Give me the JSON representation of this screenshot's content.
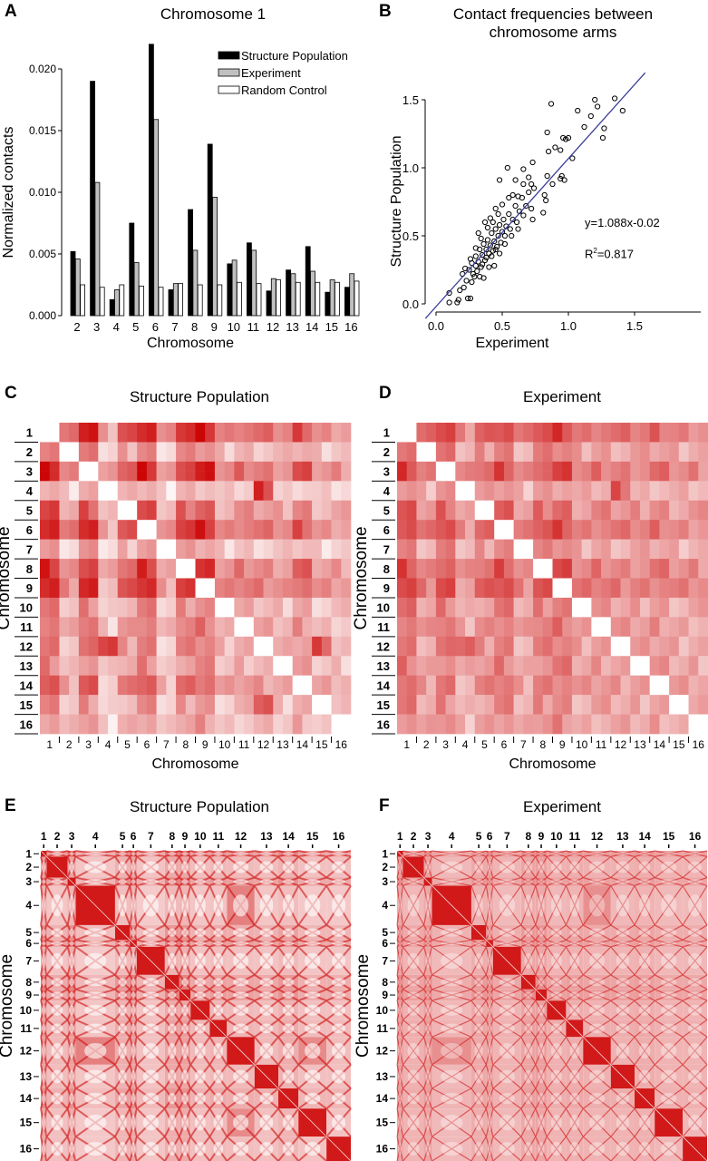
{
  "panels": {
    "A": {
      "letter": "A",
      "title": "Chromosome 1"
    },
    "B": {
      "letter": "B",
      "title_line1": "Contact frequencies between",
      "title_line2": "chromosome arms",
      "equation": "y=1.088x-0.02",
      "r2_prefix": "R",
      "r2_sup": "2",
      "r2_value": "=0.817"
    },
    "C": {
      "letter": "C",
      "title": "Structure Population"
    },
    "D": {
      "letter": "D",
      "title": "Experiment"
    },
    "E": {
      "letter": "E",
      "title": "Structure Population"
    },
    "F": {
      "letter": "F",
      "title": "Experiment"
    }
  },
  "colors": {
    "structure": "#000000",
    "experiment": "#c0c0c0",
    "random": "#ffffff",
    "fit_line": "#3b3f9a",
    "heat_high": "#cc0000",
    "heat_low": "#ffffff"
  },
  "chart_data": [
    {
      "panel": "A",
      "type": "bar",
      "title": "Chromosome 1",
      "xlabel": "Chromosome",
      "ylabel": "Normalized contacts",
      "ylim": [
        0,
        0.02
      ],
      "yticks": [
        "0.000",
        "0.005",
        "0.010",
        "0.015",
        "0.020"
      ],
      "categories": [
        "2",
        "3",
        "4",
        "5",
        "6",
        "7",
        "8",
        "9",
        "10",
        "11",
        "12",
        "13",
        "14",
        "15",
        "16"
      ],
      "legend_position": "top-right",
      "series": [
        {
          "name": "Structure Population",
          "values": [
            0.0052,
            0.019,
            0.0013,
            0.0075,
            0.022,
            0.0021,
            0.0086,
            0.0139,
            0.0042,
            0.0059,
            0.002,
            0.0037,
            0.0056,
            0.0019,
            0.0023
          ]
        },
        {
          "name": "Experiment",
          "values": [
            0.0046,
            0.0108,
            0.0021,
            0.0043,
            0.0159,
            0.0026,
            0.0053,
            0.0096,
            0.0045,
            0.0053,
            0.003,
            0.0034,
            0.0036,
            0.0029,
            0.0034
          ]
        },
        {
          "name": "Random Control",
          "values": [
            0.0025,
            0.0023,
            0.0025,
            0.0024,
            0.0023,
            0.0026,
            0.0025,
            0.0025,
            0.0027,
            0.0026,
            0.0029,
            0.0027,
            0.0027,
            0.0027,
            0.0028
          ]
        }
      ]
    },
    {
      "panel": "B",
      "type": "scatter",
      "title": "Contact frequencies between chromosome arms",
      "xlabel": "Experiment",
      "ylabel": "Structure Population",
      "xticks": [
        "0.0",
        "0.5",
        "1.0",
        "1.5"
      ],
      "yticks": [
        "0.0",
        "0.5",
        "1.0",
        "1.5"
      ],
      "fit": {
        "slope": 1.088,
        "intercept": -0.02,
        "r2": 0.817
      },
      "points": [
        [
          0.87,
          1.47
        ],
        [
          1.2,
          1.5
        ],
        [
          1.35,
          1.51
        ],
        [
          1.22,
          1.45
        ],
        [
          1.07,
          1.42
        ],
        [
          1.41,
          1.42
        ],
        [
          1.17,
          1.38
        ],
        [
          0.84,
          1.26
        ],
        [
          1.12,
          1.3
        ],
        [
          1.27,
          1.29
        ],
        [
          1.26,
          1.22
        ],
        [
          0.96,
          1.22
        ],
        [
          0.98,
          1.21
        ],
        [
          1.0,
          1.22
        ],
        [
          0.9,
          1.15
        ],
        [
          0.94,
          1.13
        ],
        [
          0.85,
          1.12
        ],
        [
          1.03,
          1.07
        ],
        [
          0.54,
          1.0
        ],
        [
          0.73,
          1.04
        ],
        [
          0.66,
          0.99
        ],
        [
          0.48,
          0.91
        ],
        [
          0.6,
          0.91
        ],
        [
          0.84,
          0.94
        ],
        [
          0.95,
          0.94
        ],
        [
          0.94,
          0.92
        ],
        [
          0.97,
          0.91
        ],
        [
          0.88,
          0.88
        ],
        [
          0.82,
          0.8
        ],
        [
          0.83,
          0.76
        ],
        [
          0.81,
          0.67
        ],
        [
          0.73,
          0.62
        ],
        [
          0.1,
          0.01
        ],
        [
          0.16,
          0.01
        ],
        [
          0.17,
          0.03
        ],
        [
          0.24,
          0.04
        ],
        [
          0.26,
          0.04
        ],
        [
          0.1,
          0.08
        ],
        [
          0.18,
          0.1
        ],
        [
          0.2,
          0.22
        ],
        [
          0.22,
          0.26
        ],
        [
          0.25,
          0.25
        ],
        [
          0.27,
          0.3
        ],
        [
          0.28,
          0.22
        ],
        [
          0.3,
          0.28
        ],
        [
          0.3,
          0.35
        ],
        [
          0.32,
          0.31
        ],
        [
          0.33,
          0.4
        ],
        [
          0.34,
          0.27
        ],
        [
          0.35,
          0.36
        ],
        [
          0.36,
          0.44
        ],
        [
          0.37,
          0.32
        ],
        [
          0.38,
          0.4
        ],
        [
          0.39,
          0.47
        ],
        [
          0.4,
          0.37
        ],
        [
          0.41,
          0.43
        ],
        [
          0.42,
          0.52
        ],
        [
          0.43,
          0.39
        ],
        [
          0.44,
          0.46
        ],
        [
          0.45,
          0.55
        ],
        [
          0.46,
          0.42
        ],
        [
          0.47,
          0.5
        ],
        [
          0.48,
          0.58
        ],
        [
          0.49,
          0.45
        ],
        [
          0.5,
          0.53
        ],
        [
          0.51,
          0.62
        ],
        [
          0.52,
          0.5
        ],
        [
          0.53,
          0.57
        ],
        [
          0.55,
          0.66
        ],
        [
          0.56,
          0.55
        ],
        [
          0.58,
          0.62
        ],
        [
          0.6,
          0.72
        ],
        [
          0.61,
          0.6
        ],
        [
          0.63,
          0.68
        ],
        [
          0.65,
          0.78
        ],
        [
          0.66,
          0.65
        ],
        [
          0.68,
          0.72
        ],
        [
          0.7,
          0.82
        ],
        [
          0.72,
          0.7
        ],
        [
          0.74,
          0.85
        ],
        [
          0.29,
          0.2
        ],
        [
          0.31,
          0.24
        ],
        [
          0.35,
          0.29
        ],
        [
          0.38,
          0.34
        ],
        [
          0.42,
          0.35
        ],
        [
          0.45,
          0.4
        ],
        [
          0.26,
          0.33
        ],
        [
          0.3,
          0.41
        ],
        [
          0.34,
          0.48
        ],
        [
          0.39,
          0.56
        ],
        [
          0.43,
          0.6
        ],
        [
          0.47,
          0.66
        ],
        [
          0.5,
          0.73
        ],
        [
          0.55,
          0.78
        ],
        [
          0.36,
          0.19
        ],
        [
          0.4,
          0.27
        ],
        [
          0.23,
          0.17
        ],
        [
          0.21,
          0.12
        ],
        [
          0.27,
          0.16
        ],
        [
          0.33,
          0.2
        ],
        [
          0.48,
          0.37
        ],
        [
          0.52,
          0.44
        ],
        [
          0.57,
          0.5
        ],
        [
          0.62,
          0.55
        ],
        [
          0.44,
          0.28
        ],
        [
          0.32,
          0.52
        ],
        [
          0.37,
          0.6
        ],
        [
          0.41,
          0.63
        ],
        [
          0.45,
          0.7
        ],
        [
          0.58,
          0.8
        ],
        [
          0.62,
          0.79
        ],
        [
          0.66,
          0.88
        ],
        [
          0.7,
          0.93
        ],
        [
          0.72,
          0.88
        ]
      ]
    },
    {
      "panel": "C",
      "type": "heatmap",
      "title": "Structure Population",
      "xlabel": "Chromosome",
      "ylabel": "Chromosome",
      "labels": [
        "1",
        "2",
        "3",
        "4",
        "5",
        "6",
        "7",
        "8",
        "9",
        "10",
        "11",
        "12",
        "13",
        "14",
        "15",
        "16"
      ],
      "values": [
        [
          0,
          0.5,
          0.95,
          0.35,
          0.7,
          0.95,
          0.4,
          0.85,
          0.9,
          0.5,
          0.6,
          0.55,
          0.5,
          0.7,
          0.45,
          0.45
        ],
        [
          0.5,
          0,
          0.48,
          0.18,
          0.35,
          0.48,
          0.2,
          0.43,
          0.45,
          0.25,
          0.3,
          0.28,
          0.25,
          0.35,
          0.23,
          0.23
        ],
        [
          0.95,
          0.48,
          0,
          0.33,
          0.67,
          0.9,
          0.38,
          0.81,
          0.86,
          0.48,
          0.57,
          0.52,
          0.48,
          0.67,
          0.43,
          0.43
        ],
        [
          0.35,
          0.18,
          0.33,
          0,
          0.25,
          0.33,
          0.14,
          0.3,
          0.32,
          0.18,
          0.21,
          0.8,
          0.18,
          0.25,
          0.16,
          0.16
        ],
        [
          0.7,
          0.35,
          0.67,
          0.25,
          0,
          0.67,
          0.28,
          0.6,
          0.63,
          0.35,
          0.42,
          0.39,
          0.35,
          0.49,
          0.32,
          0.32
        ],
        [
          0.95,
          0.48,
          0.9,
          0.33,
          0.67,
          0,
          0.38,
          0.81,
          0.86,
          0.48,
          0.57,
          0.52,
          0.48,
          0.67,
          0.43,
          0.43
        ],
        [
          0.4,
          0.2,
          0.38,
          0.14,
          0.28,
          0.38,
          0,
          0.34,
          0.36,
          0.2,
          0.24,
          0.22,
          0.2,
          0.28,
          0.18,
          0.18
        ],
        [
          0.85,
          0.43,
          0.81,
          0.3,
          0.6,
          0.81,
          0.34,
          0,
          0.77,
          0.43,
          0.51,
          0.47,
          0.43,
          0.6,
          0.38,
          0.38
        ],
        [
          0.9,
          0.45,
          0.86,
          0.32,
          0.63,
          0.86,
          0.36,
          0.77,
          0,
          0.45,
          0.54,
          0.5,
          0.45,
          0.63,
          0.41,
          0.41
        ],
        [
          0.5,
          0.25,
          0.48,
          0.18,
          0.35,
          0.48,
          0.2,
          0.43,
          0.45,
          0,
          0.3,
          0.28,
          0.25,
          0.35,
          0.23,
          0.23
        ],
        [
          0.6,
          0.3,
          0.57,
          0.21,
          0.42,
          0.57,
          0.24,
          0.51,
          0.54,
          0.3,
          0,
          0.33,
          0.3,
          0.42,
          0.27,
          0.27
        ],
        [
          0.55,
          0.28,
          0.52,
          0.8,
          0.39,
          0.52,
          0.22,
          0.47,
          0.5,
          0.28,
          0.33,
          0,
          0.28,
          0.39,
          0.7,
          0.25
        ],
        [
          0.5,
          0.25,
          0.48,
          0.18,
          0.35,
          0.48,
          0.2,
          0.43,
          0.45,
          0.25,
          0.3,
          0.28,
          0,
          0.35,
          0.23,
          0.23
        ],
        [
          0.7,
          0.35,
          0.67,
          0.25,
          0.49,
          0.67,
          0.28,
          0.6,
          0.63,
          0.35,
          0.42,
          0.39,
          0.35,
          0,
          0.32,
          0.32
        ],
        [
          0.45,
          0.23,
          0.43,
          0.16,
          0.32,
          0.43,
          0.18,
          0.38,
          0.41,
          0.23,
          0.27,
          0.7,
          0.23,
          0.32,
          0,
          0.2
        ],
        [
          0.45,
          0.23,
          0.43,
          0.16,
          0.32,
          0.43,
          0.18,
          0.38,
          0.41,
          0.23,
          0.27,
          0.25,
          0.23,
          0.32,
          0.2,
          0
        ]
      ]
    },
    {
      "panel": "D",
      "type": "heatmap",
      "title": "Experiment",
      "xlabel": "Chromosome",
      "ylabel": "Chromosome",
      "labels": [
        "1",
        "2",
        "3",
        "4",
        "5",
        "6",
        "7",
        "8",
        "9",
        "10",
        "11",
        "12",
        "13",
        "14",
        "15",
        "16"
      ],
      "values": [
        [
          0,
          0.54,
          0.77,
          0.45,
          0.63,
          0.77,
          0.5,
          0.72,
          0.77,
          0.54,
          0.59,
          0.54,
          0.54,
          0.59,
          0.5,
          0.5
        ],
        [
          0.54,
          0,
          0.51,
          0.3,
          0.42,
          0.51,
          0.33,
          0.48,
          0.51,
          0.36,
          0.39,
          0.36,
          0.36,
          0.39,
          0.33,
          0.33
        ],
        [
          0.77,
          0.51,
          0,
          0.43,
          0.6,
          0.72,
          0.47,
          0.68,
          0.72,
          0.51,
          0.55,
          0.51,
          0.51,
          0.55,
          0.47,
          0.47
        ],
        [
          0.45,
          0.3,
          0.43,
          0,
          0.35,
          0.43,
          0.28,
          0.4,
          0.43,
          0.3,
          0.33,
          0.65,
          0.3,
          0.33,
          0.28,
          0.28
        ],
        [
          0.63,
          0.42,
          0.6,
          0.35,
          0,
          0.6,
          0.39,
          0.56,
          0.6,
          0.42,
          0.46,
          0.42,
          0.42,
          0.46,
          0.39,
          0.39
        ],
        [
          0.77,
          0.51,
          0.72,
          0.43,
          0.6,
          0,
          0.47,
          0.68,
          0.72,
          0.51,
          0.55,
          0.51,
          0.51,
          0.55,
          0.47,
          0.47
        ],
        [
          0.5,
          0.33,
          0.47,
          0.28,
          0.39,
          0.47,
          0,
          0.44,
          0.47,
          0.33,
          0.36,
          0.33,
          0.33,
          0.36,
          0.3,
          0.3
        ],
        [
          0.72,
          0.48,
          0.68,
          0.4,
          0.56,
          0.68,
          0.44,
          0,
          0.68,
          0.48,
          0.52,
          0.48,
          0.48,
          0.52,
          0.44,
          0.44
        ],
        [
          0.77,
          0.51,
          0.72,
          0.43,
          0.6,
          0.72,
          0.47,
          0.68,
          0,
          0.51,
          0.55,
          0.51,
          0.51,
          0.55,
          0.47,
          0.47
        ],
        [
          0.54,
          0.36,
          0.51,
          0.3,
          0.42,
          0.51,
          0.33,
          0.48,
          0.51,
          0,
          0.39,
          0.36,
          0.36,
          0.39,
          0.33,
          0.33
        ],
        [
          0.59,
          0.39,
          0.55,
          0.33,
          0.46,
          0.55,
          0.36,
          0.52,
          0.55,
          0.39,
          0,
          0.39,
          0.39,
          0.42,
          0.36,
          0.36
        ],
        [
          0.54,
          0.36,
          0.51,
          0.65,
          0.42,
          0.51,
          0.33,
          0.48,
          0.51,
          0.36,
          0.39,
          0,
          0.36,
          0.39,
          0.33,
          0.33
        ],
        [
          0.54,
          0.36,
          0.51,
          0.3,
          0.42,
          0.51,
          0.33,
          0.48,
          0.51,
          0.36,
          0.39,
          0.36,
          0,
          0.39,
          0.33,
          0.33
        ],
        [
          0.59,
          0.39,
          0.55,
          0.33,
          0.46,
          0.55,
          0.36,
          0.52,
          0.55,
          0.39,
          0.42,
          0.39,
          0.39,
          0,
          0.36,
          0.36
        ],
        [
          0.5,
          0.33,
          0.47,
          0.28,
          0.39,
          0.47,
          0.3,
          0.44,
          0.47,
          0.33,
          0.36,
          0.33,
          0.33,
          0.36,
          0,
          0.3
        ],
        [
          0.5,
          0.33,
          0.47,
          0.28,
          0.39,
          0.47,
          0.3,
          0.44,
          0.47,
          0.33,
          0.36,
          0.33,
          0.33,
          0.36,
          0.3,
          0
        ]
      ]
    },
    {
      "panel": "E",
      "type": "heatmap",
      "title": "Structure Population",
      "ylabel": "Chromosome",
      "labels": [
        "1",
        "2",
        "3",
        "4",
        "5",
        "6",
        "7",
        "8",
        "9",
        "10",
        "11",
        "12",
        "13",
        "14",
        "15",
        "16"
      ],
      "chromosome_lengths_kb": [
        230,
        813,
        317,
        1532,
        577,
        270,
        1091,
        563,
        440,
        746,
        667,
        1078,
        924,
        784,
        1091,
        948
      ]
    },
    {
      "panel": "F",
      "type": "heatmap",
      "title": "Experiment",
      "ylabel": "Chromosome",
      "labels": [
        "1",
        "2",
        "3",
        "4",
        "5",
        "6",
        "7",
        "8",
        "9",
        "10",
        "11",
        "12",
        "13",
        "14",
        "15",
        "16"
      ],
      "chromosome_lengths_kb": [
        230,
        813,
        317,
        1532,
        577,
        270,
        1091,
        563,
        440,
        746,
        667,
        1078,
        924,
        784,
        1091,
        948
      ]
    }
  ]
}
